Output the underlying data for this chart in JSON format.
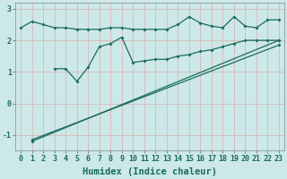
{
  "xlabel": "Humidex (Indice chaleur)",
  "background_color": "#cce8e8",
  "grid_color": "#d9b8b8",
  "line_color": "#1a6b5a",
  "ylim": [
    -1.5,
    3.2
  ],
  "xlim": [
    -0.5,
    23.5
  ],
  "yticks": [
    -1,
    0,
    1,
    2,
    3
  ],
  "xticks": [
    0,
    1,
    2,
    3,
    4,
    5,
    6,
    7,
    8,
    9,
    10,
    11,
    12,
    13,
    14,
    15,
    16,
    17,
    18,
    19,
    20,
    21,
    22,
    23
  ],
  "tick_fontsize": 6.0,
  "xlabel_fontsize": 7.5,
  "line1_x": [
    0,
    1,
    2,
    3,
    4,
    5,
    6,
    7,
    8,
    9,
    10,
    11,
    12,
    13,
    14,
    15,
    16,
    17,
    18,
    19,
    20,
    21,
    22,
    23
  ],
  "line1_y": [
    2.4,
    2.6,
    2.5,
    2.4,
    2.4,
    2.35,
    2.35,
    2.35,
    2.4,
    2.4,
    2.35,
    2.35,
    2.35,
    2.35,
    2.5,
    2.75,
    2.55,
    2.45,
    2.4,
    2.75,
    2.45,
    2.4,
    2.65,
    2.65
  ],
  "line2_x": [
    3,
    4,
    5,
    6,
    7,
    8,
    9,
    10,
    11,
    12,
    13,
    14,
    15,
    16,
    17,
    18,
    19,
    20,
    21,
    22,
    23
  ],
  "line2_y": [
    1.1,
    1.1,
    0.7,
    1.15,
    1.8,
    1.9,
    2.1,
    1.3,
    1.35,
    1.4,
    1.4,
    1.5,
    1.55,
    1.65,
    1.7,
    1.8,
    1.9,
    2.0,
    2.0,
    2.0,
    2.0
  ],
  "line3_x": [
    1,
    23
  ],
  "line3_y": [
    -1.2,
    2.0
  ],
  "line4_x": [
    1,
    23
  ],
  "line4_y": [
    -1.15,
    1.85
  ]
}
